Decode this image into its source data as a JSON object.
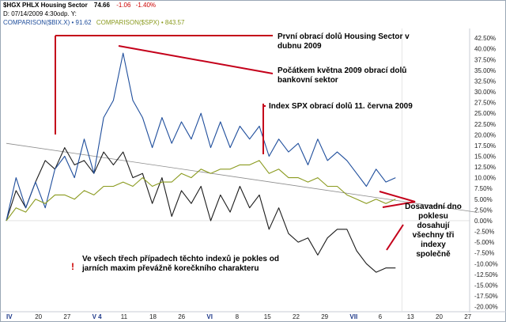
{
  "header": {
    "symbol": "$HGX PHLX Housing Sector",
    "price": "74.66",
    "change": "-1.06",
    "change_pct": "-1.40%",
    "date_line": "D: 07/14/2009    4:30odp.  Y:",
    "comparison_bix": "COMPARISON($BIX.X) • 91.62",
    "comparison_spx": "COMPARISON($SPX) • 843.57"
  },
  "annotations": {
    "a1": "První obrací dolů Housing Sector v dubnu 2009",
    "a2": "Počátkem května 2009 obrací dolů bankovní sektor",
    "a3": "Index SPX obrací dolů 11. června 2009",
    "a4": "Dosavadní dno poklesu dosahují všechny tři indexy společně",
    "note": "Ve všech třech případech těchto indexů je pokles od jarních maxim převážně korečkního charakteru",
    "exclaim": "!"
  },
  "colors": {
    "hgx": "#1c1c1c",
    "bix": "#1f4e9c",
    "spx": "#8a9a1e",
    "annotation": "#c4001a",
    "trendline": "#8c8c8c",
    "up_change": "#cc0000"
  },
  "chart_data": {
    "type": "line",
    "title": "$HGX PHLX Housing Sector",
    "x_tick_labels": [
      "IV",
      "20",
      "27",
      "V 4",
      "11",
      "18",
      "26",
      "VI",
      "8",
      "15",
      "22",
      "29",
      "VII",
      "6",
      "13",
      "20",
      "27"
    ],
    "x_highlight_labels": [
      "IV",
      "V 4",
      "VI",
      "VII"
    ],
    "y_tick_labels": [
      "42.50%",
      "40.00%",
      "37.50%",
      "35.00%",
      "32.50%",
      "30.00%",
      "27.50%",
      "25.00%",
      "22.50%",
      "20.00%",
      "17.50%",
      "15.00%",
      "12.50%",
      "10.00%",
      "7.50%",
      "5.00%",
      "2.50%",
      "0.00%",
      "-2.50%",
      "-5.00%",
      "-7.50%",
      "-10.00%",
      "-12.50%",
      "-15.00%",
      "-17.50%",
      "-20.00%"
    ],
    "ylim": [
      -21,
      44
    ],
    "y_axis_side": "right",
    "grid": false,
    "x_dates": [
      "IV 13",
      "IV 15",
      "IV 17",
      "IV 20",
      "IV 22",
      "IV 24",
      "IV 27",
      "IV 29",
      "V 1",
      "V 4",
      "V 6",
      "V 8",
      "V 11",
      "V 13",
      "V 15",
      "V 18",
      "V 20",
      "V 22",
      "V 26",
      "V 28",
      "V 29",
      "VI 1",
      "VI 3",
      "VI 5",
      "VI 8",
      "VI 10",
      "VI 12",
      "VI 15",
      "VI 17",
      "VI 19",
      "VI 22",
      "VI 24",
      "VI 26",
      "VI 29",
      "VII 1",
      "VII 3",
      "VII 6",
      "VII 8",
      "VII 10",
      "VII 13",
      "VII 14"
    ],
    "series": [
      {
        "name": "$HGX",
        "values": [
          0,
          7,
          3,
          9,
          14,
          12,
          17,
          13,
          14,
          11,
          16,
          13,
          16,
          10,
          11,
          4,
          10,
          1,
          7,
          4,
          8,
          0,
          6,
          2,
          8,
          3,
          6,
          -2,
          3,
          -3,
          -5,
          -4,
          -8,
          -4,
          -2,
          -2,
          -7,
          -10,
          -12,
          -11,
          -11
        ]
      },
      {
        "name": "$BIX.X",
        "values": [
          0,
          10,
          3,
          9,
          3,
          12,
          15,
          10,
          19,
          11,
          24,
          28,
          39,
          28,
          24,
          17,
          24,
          18,
          23,
          19,
          25,
          17,
          23,
          17,
          22,
          19,
          22,
          15,
          19,
          16,
          18,
          13,
          19,
          14,
          16,
          14,
          11,
          8,
          12,
          9,
          10
        ]
      },
      {
        "name": "$SPX",
        "values": [
          0,
          3,
          2,
          5,
          4,
          6,
          6,
          5,
          7,
          6,
          8,
          8,
          9,
          8,
          10,
          8,
          9,
          9,
          11,
          10,
          12,
          11,
          12,
          12,
          13,
          13,
          14,
          11,
          12,
          10,
          10,
          9,
          10,
          8,
          8,
          6,
          5,
          4,
          5,
          4,
          5
        ]
      }
    ],
    "trendline": {
      "from": [
        "IV 13",
        18
      ],
      "to": [
        "VII 27",
        2
      ]
    }
  }
}
